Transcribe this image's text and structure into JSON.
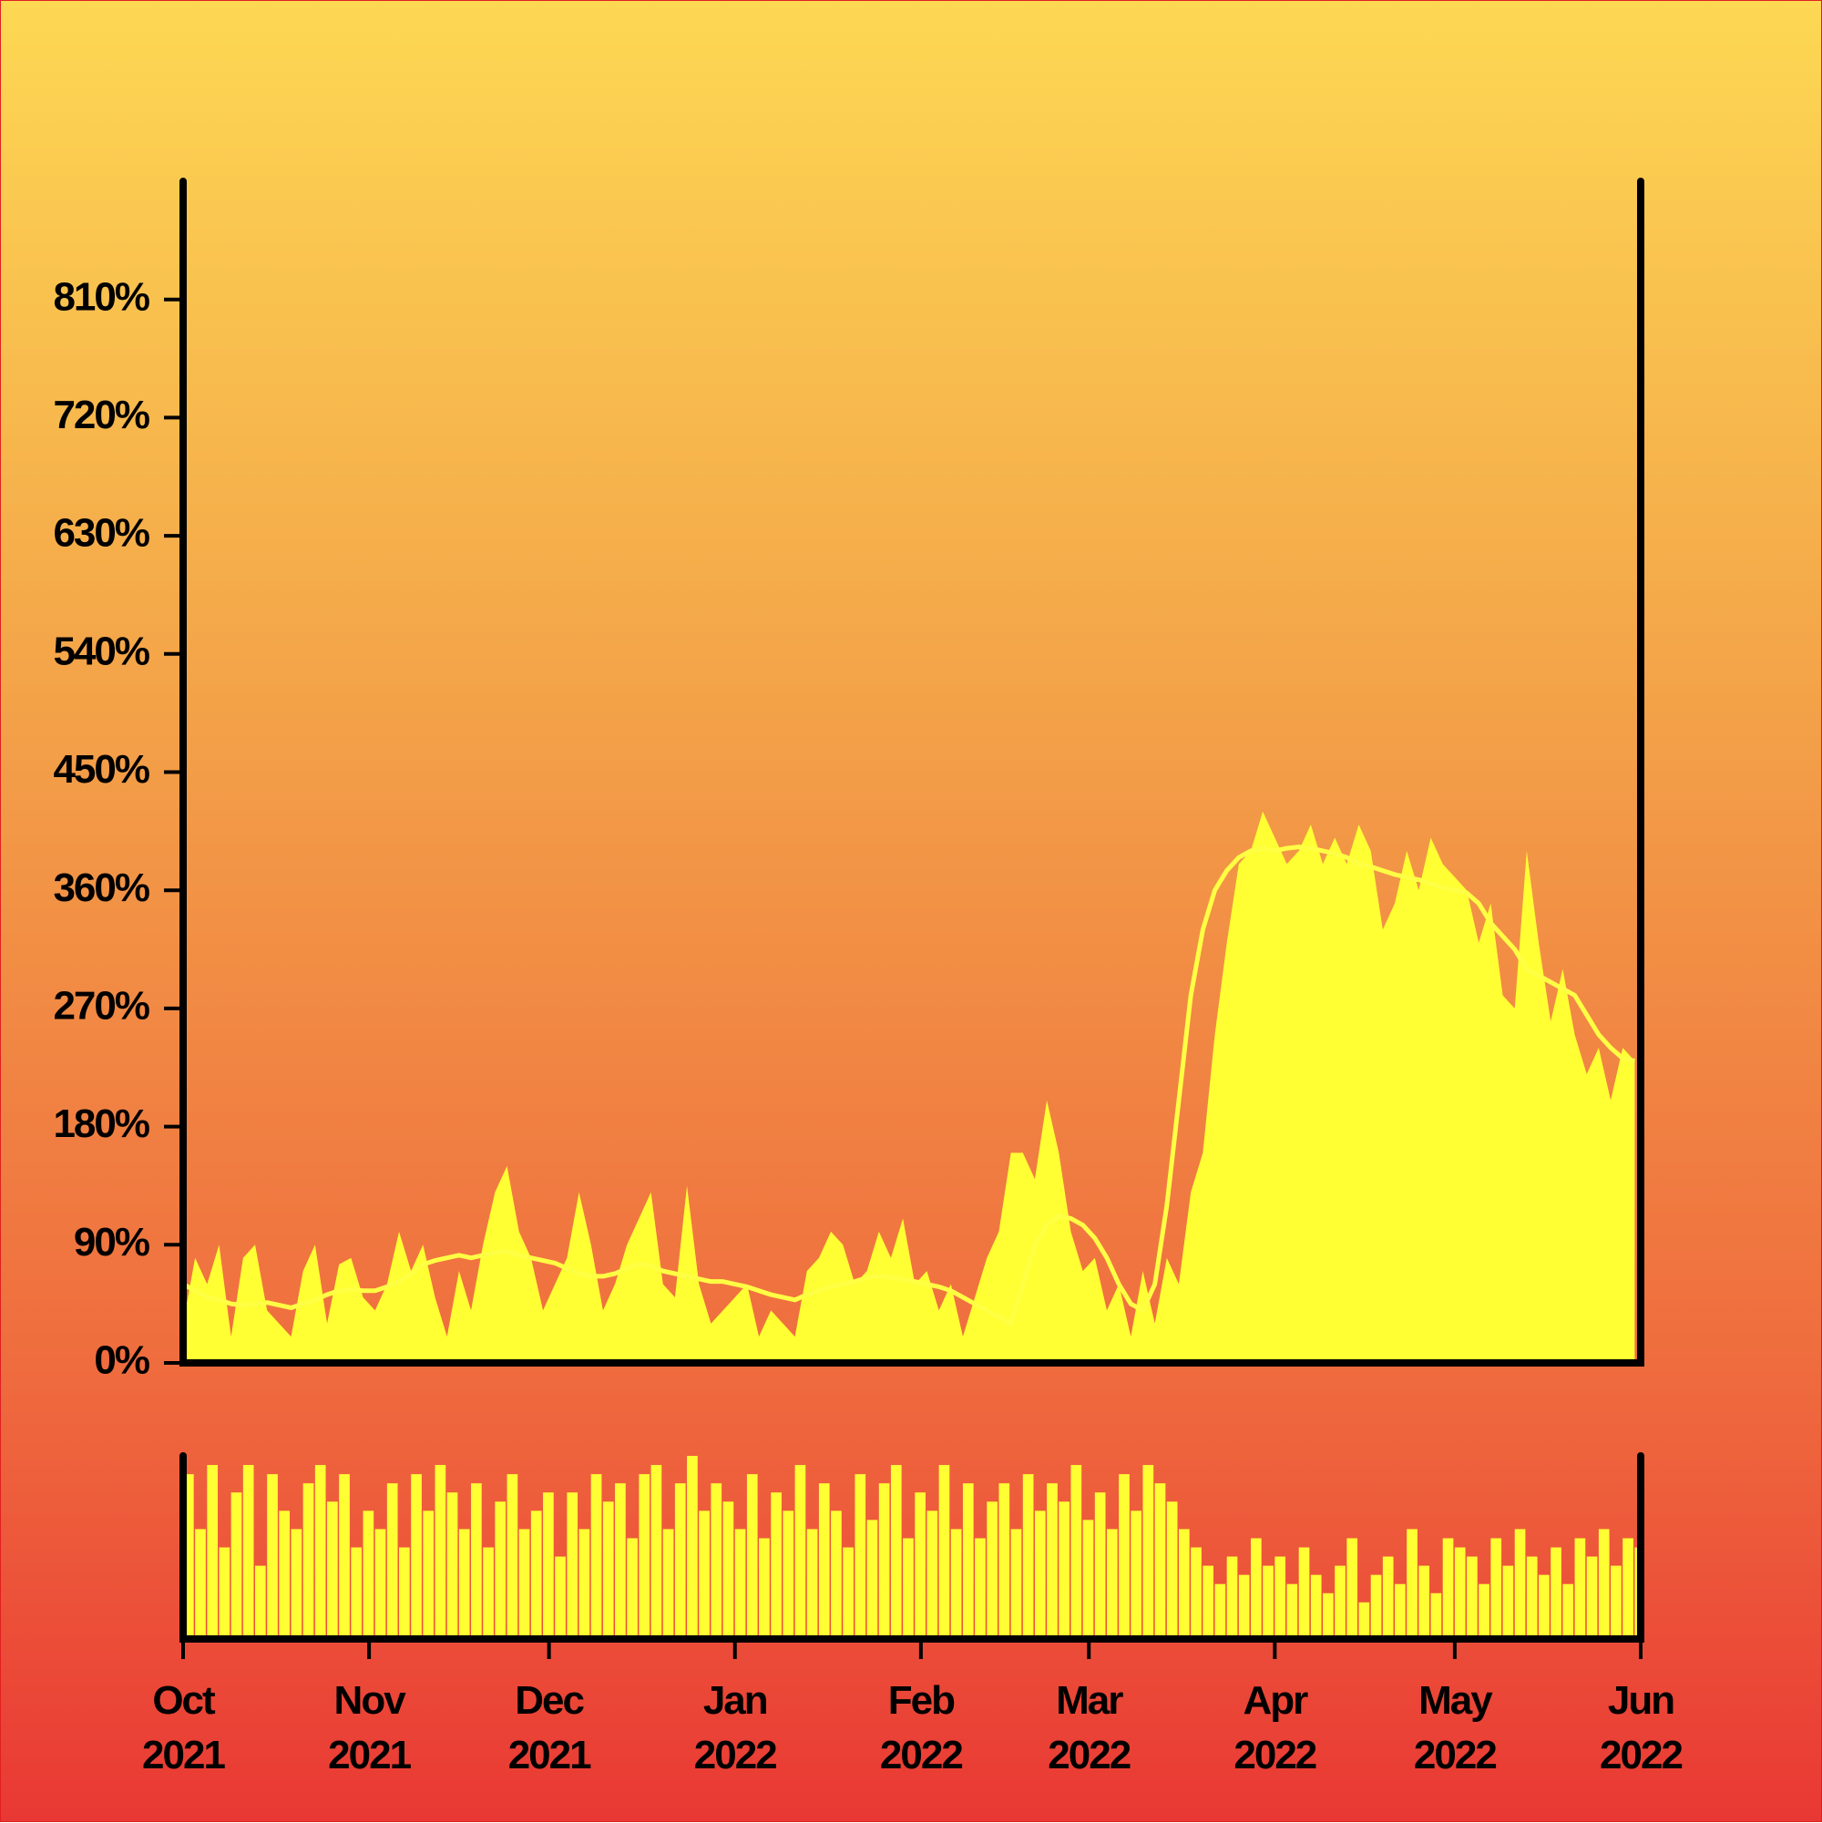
{
  "chart_data": [
    {
      "type": "area",
      "x": [
        0,
        2,
        4,
        6,
        8,
        10,
        12,
        14,
        16,
        18,
        20,
        22,
        24,
        26,
        28,
        30,
        32,
        34,
        36,
        38,
        40,
        42,
        44,
        46,
        48,
        50,
        52,
        54,
        56,
        58,
        60,
        62,
        64,
        66,
        68,
        70,
        72,
        74,
        76,
        78,
        80,
        82,
        84,
        86,
        88,
        90,
        92,
        94,
        96,
        98,
        100,
        102,
        104,
        106,
        108,
        110,
        112,
        114,
        116,
        118,
        120,
        122,
        124,
        126,
        128,
        130,
        132,
        134,
        136,
        138,
        140,
        142,
        144,
        146,
        148,
        150,
        152,
        154,
        156,
        158,
        160,
        162,
        164,
        166,
        168,
        170,
        172,
        174,
        176,
        178,
        180,
        182,
        184,
        186,
        188,
        190,
        192,
        194,
        196,
        198,
        200,
        202,
        204,
        206,
        208,
        210,
        212,
        214,
        216,
        218,
        220,
        222,
        224,
        226,
        228,
        230,
        232,
        234,
        236,
        238,
        240,
        242
      ],
      "series": [
        {
          "type": "area",
          "color": "#ffff33",
          "values": [
            30,
            80,
            60,
            90,
            20,
            80,
            90,
            40,
            30,
            20,
            70,
            90,
            30,
            75,
            80,
            50,
            40,
            60,
            100,
            70,
            90,
            50,
            20,
            70,
            40,
            90,
            130,
            150,
            100,
            80,
            40,
            60,
            80,
            130,
            90,
            40,
            60,
            90,
            110,
            130,
            60,
            50,
            135,
            60,
            30,
            40,
            50,
            60,
            20,
            40,
            30,
            20,
            70,
            80,
            100,
            90,
            60,
            70,
            100,
            80,
            110,
            60,
            70,
            40,
            60,
            20,
            50,
            80,
            100,
            160,
            160,
            140,
            200,
            160,
            100,
            70,
            80,
            40,
            60,
            20,
            70,
            30,
            80,
            60,
            130,
            160,
            250,
            320,
            380,
            390,
            420,
            400,
            380,
            390,
            410,
            380,
            400,
            380,
            410,
            390,
            330,
            350,
            390,
            360,
            400,
            380,
            370,
            360,
            320,
            350,
            280,
            270,
            390,
            320,
            260,
            300,
            250,
            220,
            240,
            200,
            240,
            230
          ]
        },
        {
          "type": "line",
          "color": "#ffff44",
          "values": [
            60,
            55,
            50,
            48,
            45,
            44,
            45,
            46,
            44,
            42,
            45,
            48,
            52,
            55,
            56,
            55,
            55,
            58,
            62,
            68,
            75,
            78,
            80,
            82,
            80,
            82,
            84,
            85,
            82,
            80,
            78,
            76,
            72,
            68,
            66,
            66,
            68,
            72,
            75,
            74,
            70,
            68,
            66,
            64,
            62,
            62,
            60,
            58,
            55,
            52,
            50,
            48,
            52,
            55,
            58,
            60,
            62,
            65,
            66,
            65,
            64,
            62,
            60,
            58,
            55,
            50,
            45,
            40,
            35,
            30,
            60,
            90,
            105,
            112,
            110,
            105,
            95,
            80,
            60,
            45,
            40,
            60,
            120,
            200,
            280,
            330,
            360,
            375,
            385,
            390,
            392,
            390,
            392,
            393,
            392,
            390,
            388,
            385,
            380,
            378,
            375,
            372,
            370,
            368,
            365,
            362,
            360,
            358,
            350,
            335,
            325,
            315,
            300,
            295,
            290,
            285,
            280,
            265,
            250,
            240,
            232,
            230
          ]
        }
      ],
      "xlim": [
        0,
        243
      ],
      "ylim": [
        0,
        900
      ],
      "yticks": [
        {
          "value": 0,
          "label": "0%"
        },
        {
          "value": 90,
          "label": "90%"
        },
        {
          "value": 180,
          "label": "180%"
        },
        {
          "value": 270,
          "label": "270%"
        },
        {
          "value": 360,
          "label": "360%"
        },
        {
          "value": 450,
          "label": "450%"
        },
        {
          "value": 540,
          "label": "540%"
        },
        {
          "value": 630,
          "label": "630%"
        },
        {
          "value": 720,
          "label": "720%"
        },
        {
          "value": 810,
          "label": "810%"
        }
      ]
    },
    {
      "type": "bar",
      "x": [
        0,
        2,
        4,
        6,
        8,
        10,
        12,
        14,
        16,
        18,
        20,
        22,
        24,
        26,
        28,
        30,
        32,
        34,
        36,
        38,
        40,
        42,
        44,
        46,
        48,
        50,
        52,
        54,
        56,
        58,
        60,
        62,
        64,
        66,
        68,
        70,
        72,
        74,
        76,
        78,
        80,
        82,
        84,
        86,
        88,
        90,
        92,
        94,
        96,
        98,
        100,
        102,
        104,
        106,
        108,
        110,
        112,
        114,
        116,
        118,
        120,
        122,
        124,
        126,
        128,
        130,
        132,
        134,
        136,
        138,
        140,
        142,
        144,
        146,
        148,
        150,
        152,
        154,
        156,
        158,
        160,
        162,
        164,
        166,
        168,
        170,
        172,
        174,
        176,
        178,
        180,
        182,
        184,
        186,
        188,
        190,
        192,
        194,
        196,
        198,
        200,
        202,
        204,
        206,
        208,
        210,
        212,
        214,
        216,
        218,
        220,
        222,
        224,
        226,
        228,
        230,
        232,
        234,
        236,
        238,
        240,
        242
      ],
      "values": [
        90,
        60,
        95,
        50,
        80,
        95,
        40,
        90,
        70,
        60,
        85,
        95,
        75,
        90,
        50,
        70,
        60,
        85,
        50,
        90,
        70,
        95,
        80,
        60,
        85,
        50,
        75,
        90,
        60,
        70,
        80,
        45,
        80,
        60,
        90,
        75,
        85,
        55,
        90,
        95,
        60,
        85,
        100,
        70,
        85,
        75,
        60,
        90,
        55,
        80,
        70,
        95,
        60,
        85,
        70,
        50,
        90,
        65,
        85,
        95,
        55,
        80,
        70,
        95,
        60,
        85,
        55,
        75,
        85,
        60,
        90,
        70,
        85,
        75,
        95,
        65,
        80,
        60,
        90,
        70,
        95,
        85,
        75,
        60,
        50,
        40,
        30,
        45,
        35,
        55,
        40,
        45,
        30,
        50,
        35,
        25,
        40,
        55,
        20,
        35,
        45,
        30,
        60,
        40,
        25,
        55,
        50,
        45,
        30,
        55,
        40,
        60,
        45,
        35,
        50,
        30,
        55,
        45,
        60,
        40,
        55,
        50
      ],
      "color": "#ffff33",
      "xlim": [
        0,
        243
      ],
      "ylim": [
        0,
        100
      ],
      "xticks": [
        {
          "value": 0,
          "label": "Oct 2021"
        },
        {
          "value": 31,
          "label": "Nov 2021"
        },
        {
          "value": 61,
          "label": "Dec 2021"
        },
        {
          "value": 92,
          "label": "Jan 2022"
        },
        {
          "value": 123,
          "label": "Feb 2022"
        },
        {
          "value": 151,
          "label": "Mar 2022"
        },
        {
          "value": 182,
          "label": "Apr 2022"
        },
        {
          "value": 212,
          "label": "May 2022"
        },
        {
          "value": 243,
          "label": "Jun 2022"
        }
      ]
    }
  ]
}
